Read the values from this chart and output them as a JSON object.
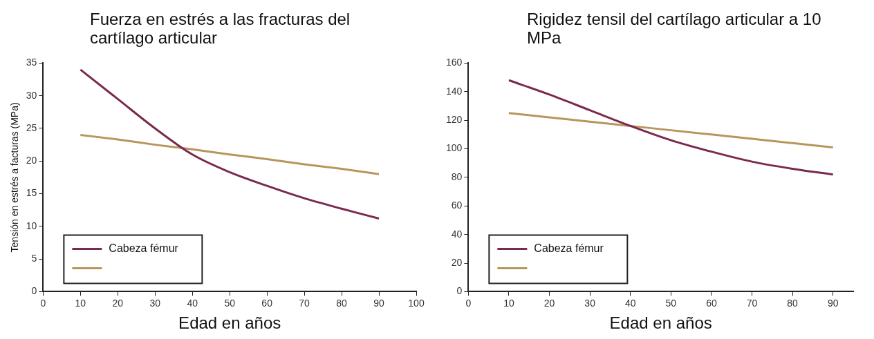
{
  "chart_data": [
    {
      "type": "line",
      "title": "Fuerza en estrés a las fracturas del cartílago articular",
      "xlabel": "Edad en años",
      "ylabel": "Tensión en estrés a facturas (MPa)",
      "x": [
        10,
        20,
        30,
        40,
        50,
        60,
        70,
        80,
        90
      ],
      "series": [
        {
          "name": "Cabeza fémur",
          "color": "#7a2a4e",
          "values": [
            34,
            29.5,
            25,
            21,
            18.3,
            16.2,
            14.3,
            12.7,
            11.2
          ]
        },
        {
          "color": "#b8955a",
          "values": [
            24,
            23.3,
            22.5,
            21.8,
            21,
            20.3,
            19.5,
            18.8,
            18
          ]
        }
      ],
      "xlim": [
        0,
        100
      ],
      "xticks": [
        0,
        10,
        20,
        30,
        40,
        50,
        60,
        70,
        80,
        90,
        100
      ],
      "ylim": [
        0,
        35
      ],
      "yticks": [
        0,
        5,
        10,
        15,
        20,
        25,
        30,
        35
      ],
      "grid": false,
      "legend": "bottom left",
      "marker": "none"
    },
    {
      "type": "line",
      "title": "Rigidez tensil del cartílago articular a 10 MPa",
      "xlabel": "Edad en años",
      "x": [
        10,
        20,
        30,
        40,
        50,
        60,
        70,
        80,
        90
      ],
      "series": [
        {
          "name": "Cabeza fémur",
          "color": "#7a2a4e",
          "values": [
            148,
            138,
            127,
            116,
            106,
            98,
            91,
            86,
            82
          ]
        },
        {
          "color": "#b8955a",
          "values": [
            125,
            122,
            119,
            116,
            113,
            110,
            107,
            104,
            101
          ]
        }
      ],
      "xlim": [
        0,
        95
      ],
      "xticks": [
        0,
        10,
        20,
        30,
        40,
        50,
        60,
        70,
        80,
        90
      ],
      "ylim": [
        0,
        160
      ],
      "yticks": [
        0,
        20,
        40,
        60,
        80,
        100,
        120,
        140,
        160
      ],
      "grid": false,
      "legend": "bottom left",
      "marker": "none"
    }
  ]
}
